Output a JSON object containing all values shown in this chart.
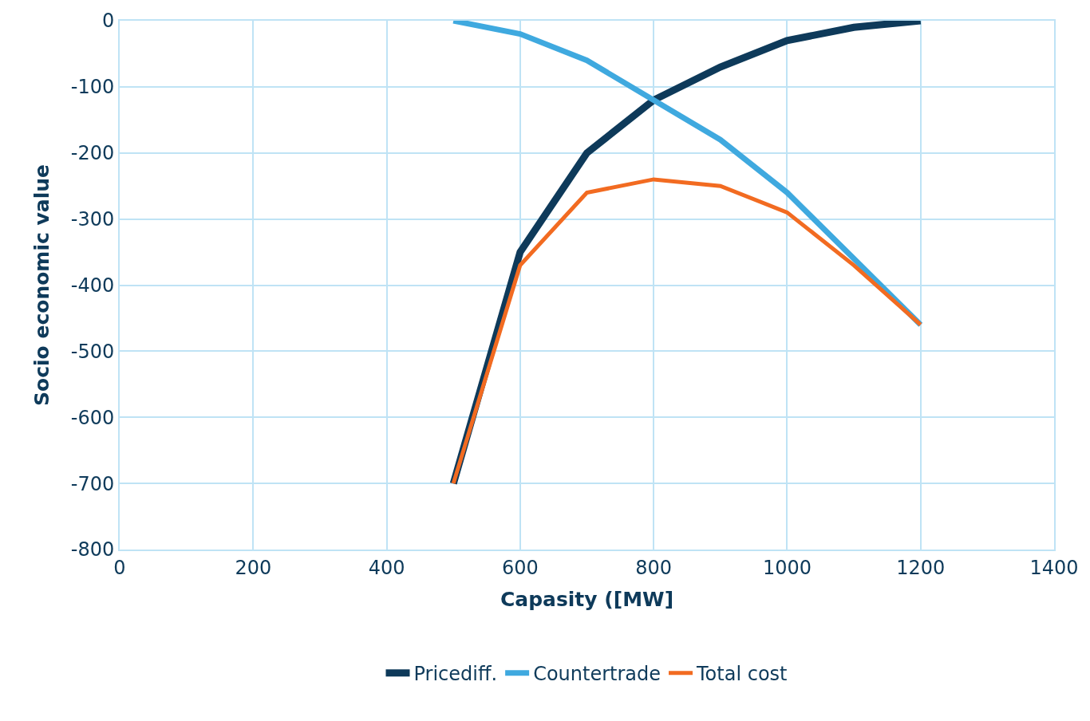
{
  "chart_data": {
    "type": "line",
    "xlabel": "Capasity ([MW]",
    "ylabel": "Socio economic value",
    "x": [
      500,
      600,
      700,
      800,
      900,
      1000,
      1100,
      1200
    ],
    "series": [
      {
        "name": "Pricediff.",
        "color": "#0e3a5a",
        "values": [
          -700,
          -350,
          -200,
          -120,
          -70,
          -30,
          -10,
          0
        ]
      },
      {
        "name": "Countertrade",
        "color": "#3fa9df",
        "values": [
          0,
          -20,
          -60,
          -120,
          -180,
          -260,
          -360,
          -460
        ]
      },
      {
        "name": "Total cost",
        "color": "#f26b21",
        "values": [
          -700,
          -370,
          -260,
          -240,
          -250,
          -290,
          -370,
          -460
        ]
      }
    ],
    "xlim": [
      0,
      1400
    ],
    "xticks": [
      0,
      200,
      400,
      600,
      800,
      1000,
      1200,
      1400
    ],
    "ylim": [
      -800,
      0
    ],
    "yticks": [
      -800,
      -700,
      -600,
      -500,
      -400,
      -300,
      -200,
      -100,
      0
    ],
    "grid": true,
    "legend": "bottom",
    "marker": "none",
    "line_style": "solid"
  }
}
